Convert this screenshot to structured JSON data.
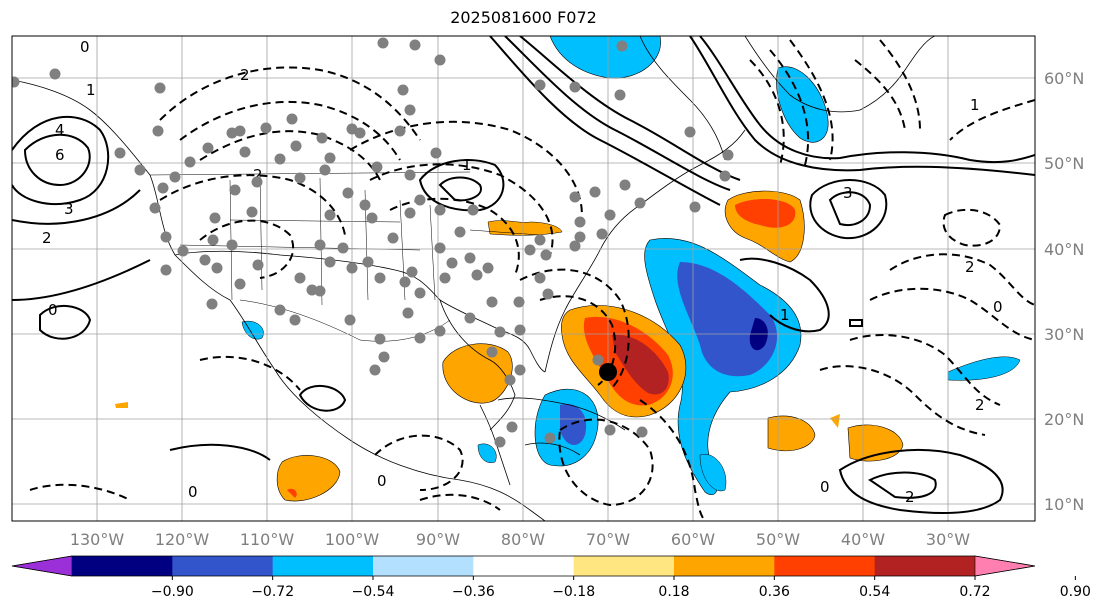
{
  "title": "2025081600 F072",
  "map": {
    "lat_labels": [
      "60°N",
      "50°N",
      "40°N",
      "30°N",
      "20°N",
      "10°N"
    ],
    "lon_labels": [
      "130°W",
      "120°W",
      "110°W",
      "100°W",
      "90°W",
      "80°W",
      "70°W",
      "60°W",
      "50°W",
      "40°W",
      "30°W"
    ],
    "contour_labels": [
      "0",
      "2",
      "4",
      "6",
      "1",
      "3",
      "2",
      "0",
      "2",
      "1",
      "3",
      "2",
      "0",
      "1",
      "2",
      "0",
      "0",
      "0",
      "2",
      "1"
    ]
  },
  "colorbar": {
    "ticks": [
      "−0.90",
      "−0.72",
      "−0.54",
      "−0.36",
      "−0.18",
      "0.18",
      "0.36",
      "0.54",
      "0.72",
      "0.90"
    ],
    "colors": [
      "#9b30d9",
      "#000080",
      "#3355cc",
      "#00bfff",
      "#b3e0ff",
      "#ffffff",
      "#ffe680",
      "#ffa500",
      "#ff4000",
      "#b22222",
      "#ff80b0"
    ]
  },
  "colors": {
    "land_line": "#000000",
    "grid": "#a0a0a0",
    "station": "#808080",
    "storm": "#000000"
  }
}
